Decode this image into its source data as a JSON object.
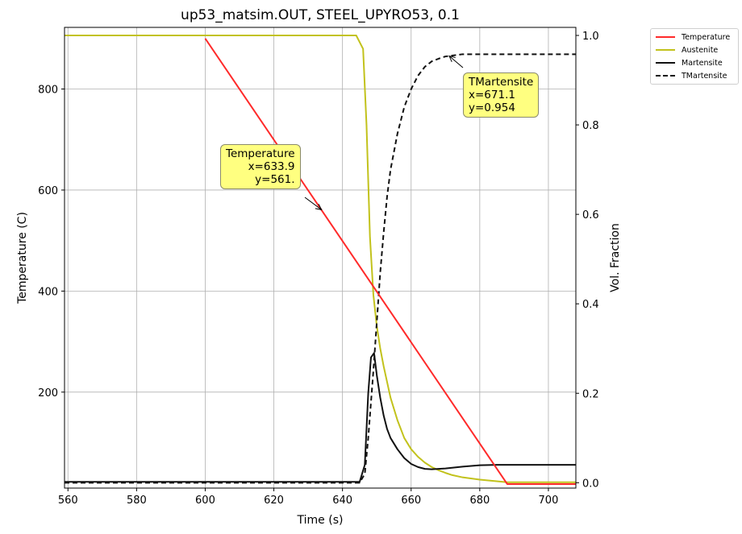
{
  "chart_data": {
    "type": "line",
    "title": "up53_matsim.OUT, STEEL_UPYRO53, 0.1",
    "xlabel": "Time (s)",
    "ylabel": "Temperature (C)",
    "y2label": "Vol. Fraction",
    "xlim": [
      559,
      708
    ],
    "ylim": [
      10,
      922
    ],
    "y2lim": [
      -0.012,
      1.018
    ],
    "xticks": [
      "560",
      "580",
      "600",
      "620",
      "640",
      "660",
      "680",
      "700"
    ],
    "yticks": [
      "200",
      "400",
      "600",
      "800"
    ],
    "y2ticks": [
      "0.0",
      "0.2",
      "0.4",
      "0.6",
      "0.8",
      "1.0"
    ],
    "grid": true,
    "legend_position": "outside-top-right",
    "series": [
      {
        "name": "Temperature",
        "axis": "left",
        "color": "#ff2a2a",
        "dash": "solid",
        "x": [
          600,
          688,
          708
        ],
        "y": [
          900,
          18,
          18
        ]
      },
      {
        "name": "Austenite",
        "axis": "right",
        "color": "#c2c21c",
        "dash": "solid",
        "x": [
          559,
          644,
          646,
          647,
          648,
          649,
          650,
          651,
          652,
          654,
          656,
          658,
          660,
          662,
          664,
          666,
          668,
          670,
          672,
          675,
          680,
          688,
          708
        ],
        "y": [
          1.0,
          1.0,
          0.97,
          0.8,
          0.55,
          0.42,
          0.35,
          0.3,
          0.26,
          0.19,
          0.14,
          0.1,
          0.075,
          0.058,
          0.045,
          0.035,
          0.028,
          0.022,
          0.017,
          0.012,
          0.007,
          0.001,
          0.001
        ]
      },
      {
        "name": "Martensite",
        "axis": "right",
        "color": "#111111",
        "dash": "solid",
        "x": [
          559,
          645,
          646.5,
          647.5,
          648.3,
          649.2,
          650,
          651,
          652,
          653,
          654,
          656,
          658,
          660,
          662,
          664,
          666,
          670,
          675,
          680,
          685,
          690,
          708
        ],
        "y": [
          0.002,
          0.002,
          0.04,
          0.2,
          0.28,
          0.29,
          0.24,
          0.19,
          0.15,
          0.12,
          0.1,
          0.075,
          0.055,
          0.042,
          0.035,
          0.031,
          0.03,
          0.032,
          0.036,
          0.039,
          0.04,
          0.04,
          0.04
        ]
      },
      {
        "name": "TMartensite",
        "axis": "right",
        "color": "#111111",
        "dash": "dashed",
        "x": [
          559,
          645,
          646.5,
          647.5,
          649,
          650,
          651,
          652,
          653,
          654,
          656,
          658,
          660,
          662,
          664,
          666,
          668,
          670,
          671,
          672,
          675,
          680,
          690,
          708
        ],
        "y": [
          0.0,
          0.0,
          0.02,
          0.1,
          0.25,
          0.36,
          0.47,
          0.56,
          0.64,
          0.7,
          0.78,
          0.84,
          0.88,
          0.91,
          0.93,
          0.942,
          0.948,
          0.953,
          0.954,
          0.955,
          0.958,
          0.958,
          0.958,
          0.958
        ]
      }
    ],
    "annotations": [
      {
        "label": "Temperature",
        "x_text": "x=633.9",
        "y_text": "y=561.",
        "x": 633.9,
        "y": 561,
        "axis": "left"
      },
      {
        "label": "TMartensite",
        "x_text": "x=671.1",
        "y_text": "y=0.954",
        "x": 671.1,
        "y": 0.954,
        "axis": "right"
      }
    ]
  }
}
